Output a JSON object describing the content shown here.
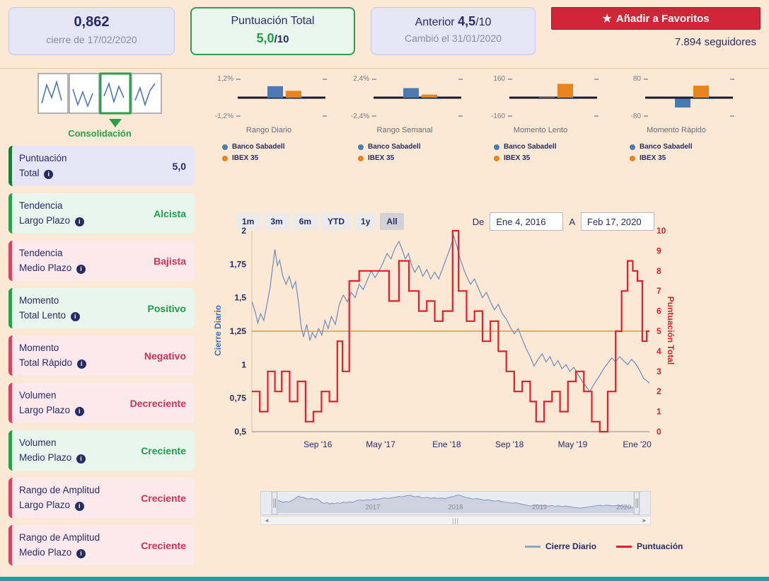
{
  "colors": {
    "navy": "#272b63",
    "green": "#27a04a",
    "red": "#cf3351",
    "sabadell": "#4d79b3",
    "ibex": "#e8831f",
    "price_line": "#6b8cbf",
    "score_line": "#e81c2c",
    "hline": "#f2a94f",
    "nav_line": "#7e94c0",
    "nav_fill": "#ccd2de",
    "button_red": "#d02537",
    "bottom_bar": "#13a3a8"
  },
  "header": {
    "price_card": {
      "value": "0,862",
      "subtitle": "cierre de 17/02/2020"
    },
    "score_card": {
      "title": "Puntuación Total",
      "value": "5,0",
      "suffix": "/10"
    },
    "previous_card": {
      "label": "Anterior",
      "value": "4,5",
      "suffix": "/10",
      "subtitle": "Cambió el 31/01/2020"
    },
    "favorites_button": {
      "icon": "star",
      "label": "Añadir a Favoritos"
    },
    "followers": "7.894 seguidores"
  },
  "pattern_widget": {
    "label": "Consolidación",
    "active_phase": 3,
    "phases": 4
  },
  "sidebar": {
    "items": [
      {
        "title": "Puntuación",
        "title2": "Total",
        "value": "5,0",
        "sentiment": "score"
      },
      {
        "title": "Tendencia",
        "title2": "Largo Plazo",
        "value": "Alcista",
        "sentiment": "positive"
      },
      {
        "title": "Tendencia",
        "title2": "Medio Plazo",
        "value": "Bajista",
        "sentiment": "negative"
      },
      {
        "title": "Momento",
        "title2": "Total Lento",
        "value": "Positivo",
        "sentiment": "positive"
      },
      {
        "title": "Momento",
        "title2": "Total Rápido",
        "value": "Negativo",
        "sentiment": "negative"
      },
      {
        "title": "Volumen",
        "title2": "Largo Plazo",
        "value": "Decreciente",
        "sentiment": "negative"
      },
      {
        "title": "Volumen",
        "title2": "Medio Plazo",
        "value": "Creciente",
        "sentiment": "positive"
      },
      {
        "title": "Rango de Amplitud",
        "title2": "Largo Plazo",
        "value": "Creciente",
        "sentiment": "negative"
      },
      {
        "title": "Rango de Amplitud",
        "title2": "Medio Plazo",
        "value": "Creciente",
        "sentiment": "negative"
      }
    ]
  },
  "controls": {
    "ranges": [
      "1m",
      "3m",
      "6m",
      "YTD",
      "1y",
      "All"
    ],
    "selected_range": "All",
    "from_label": "De",
    "from_value": "Ene 4, 2016",
    "to_label": "A",
    "to_value": "Feb 17, 2020"
  },
  "chart_data": {
    "mini_bars": [
      {
        "type": "bar",
        "title": "Rango Diario",
        "ymax_label": "1,2%",
        "ymin_label": "-1,2%",
        "ymax": 1.2,
        "series": [
          {
            "name": "Banco Sabadell",
            "value": 0.75
          },
          {
            "name": "IBEX 35",
            "value": 0.45
          }
        ]
      },
      {
        "type": "bar",
        "title": "Rango Semanal",
        "ymax_label": "2,4%",
        "ymin_label": "-2,4%",
        "ymax": 2.4,
        "series": [
          {
            "name": "Banco Sabadell",
            "value": 1.25
          },
          {
            "name": "IBEX 35",
            "value": 0.4
          }
        ]
      },
      {
        "type": "bar",
        "title": "Momento Lento",
        "ymax_label": "160",
        "ymin_label": "-160",
        "ymax": 160,
        "series": [
          {
            "name": "Banco Sabadell",
            "value": 4
          },
          {
            "name": "IBEX 35",
            "value": 120
          }
        ]
      },
      {
        "type": "bar",
        "title": "Momento Rápido",
        "ymax_label": "80",
        "ymin_label": "-80",
        "ymax": 80,
        "series": [
          {
            "name": "Banco Sabadell",
            "value": -38
          },
          {
            "name": "IBEX 35",
            "value": 52
          }
        ]
      }
    ],
    "main": {
      "type": "line",
      "left_axis": {
        "title": "Cierre Diario",
        "min": 0.5,
        "max": 2,
        "ticks": [
          {
            "v": 2,
            "label": "2"
          },
          {
            "v": 1.75,
            "label": "1,75"
          },
          {
            "v": 1.5,
            "label": "1,5"
          },
          {
            "v": 1.25,
            "label": "1,25"
          },
          {
            "v": 1,
            "label": "1"
          },
          {
            "v": 0.75,
            "label": "0,75"
          },
          {
            "v": 0.5,
            "label": "0,5"
          }
        ]
      },
      "right_axis": {
        "title": "Puntuación Total",
        "min": 0,
        "max": 10,
        "ticks": [
          {
            "v": 10,
            "label": "10"
          },
          {
            "v": 9,
            "label": "9"
          },
          {
            "v": 8,
            "label": "8"
          },
          {
            "v": 7,
            "label": "7"
          },
          {
            "v": 6,
            "label": "6"
          },
          {
            "v": 5,
            "label": "5"
          },
          {
            "v": 4,
            "label": "4"
          },
          {
            "v": 3,
            "label": "3"
          },
          {
            "v": 2,
            "label": "2"
          },
          {
            "v": 1,
            "label": "1"
          },
          {
            "v": 0,
            "label": "0"
          }
        ]
      },
      "x_axis": {
        "start": "Ene 4, 2016",
        "end": "Feb 17, 2020",
        "ticks": [
          {
            "pos": 0.166,
            "label": "Sep '16"
          },
          {
            "pos": 0.324,
            "label": "May '17"
          },
          {
            "pos": 0.49,
            "label": "Ene '18"
          },
          {
            "pos": 0.648,
            "label": "Sep '18"
          },
          {
            "pos": 0.807,
            "label": "May '19"
          },
          {
            "pos": 0.969,
            "label": "Ene '20"
          }
        ]
      },
      "hline": 5,
      "series": [
        {
          "name": "Cierre Diario",
          "type": "line",
          "axis": "left",
          "color": "#6b8cbf",
          "points": [
            [
              0,
              1.47
            ],
            [
              0.008,
              1.4
            ],
            [
              0.015,
              1.31
            ],
            [
              0.022,
              1.38
            ],
            [
              0.03,
              1.33
            ],
            [
              0.038,
              1.45
            ],
            [
              0.046,
              1.58
            ],
            [
              0.052,
              1.72
            ],
            [
              0.058,
              1.86
            ],
            [
              0.064,
              1.74
            ],
            [
              0.07,
              1.78
            ],
            [
              0.078,
              1.66
            ],
            [
              0.086,
              1.6
            ],
            [
              0.094,
              1.66
            ],
            [
              0.102,
              1.57
            ],
            [
              0.11,
              1.62
            ],
            [
              0.118,
              1.45
            ],
            [
              0.124,
              1.28
            ],
            [
              0.13,
              1.21
            ],
            [
              0.138,
              1.3
            ],
            [
              0.146,
              1.18
            ],
            [
              0.152,
              1.24
            ],
            [
              0.16,
              1.2
            ],
            [
              0.168,
              1.27
            ],
            [
              0.176,
              1.22
            ],
            [
              0.184,
              1.33
            ],
            [
              0.192,
              1.27
            ],
            [
              0.2,
              1.36
            ],
            [
              0.21,
              1.3
            ],
            [
              0.22,
              1.45
            ],
            [
              0.23,
              1.52
            ],
            [
              0.24,
              1.47
            ],
            [
              0.25,
              1.54
            ],
            [
              0.26,
              1.5
            ],
            [
              0.27,
              1.6
            ],
            [
              0.28,
              1.56
            ],
            [
              0.29,
              1.63
            ],
            [
              0.3,
              1.7
            ],
            [
              0.31,
              1.65
            ],
            [
              0.32,
              1.7
            ],
            [
              0.33,
              1.76
            ],
            [
              0.34,
              1.83
            ],
            [
              0.35,
              1.79
            ],
            [
              0.36,
              1.87
            ],
            [
              0.37,
              1.92
            ],
            [
              0.378,
              1.86
            ],
            [
              0.386,
              1.79
            ],
            [
              0.394,
              1.83
            ],
            [
              0.402,
              1.74
            ],
            [
              0.41,
              1.69
            ],
            [
              0.42,
              1.74
            ],
            [
              0.43,
              1.66
            ],
            [
              0.44,
              1.71
            ],
            [
              0.45,
              1.64
            ],
            [
              0.46,
              1.69
            ],
            [
              0.47,
              1.64
            ],
            [
              0.48,
              1.72
            ],
            [
              0.49,
              1.8
            ],
            [
              0.5,
              1.88
            ],
            [
              0.508,
              1.96
            ],
            [
              0.516,
              1.88
            ],
            [
              0.524,
              1.79
            ],
            [
              0.532,
              1.72
            ],
            [
              0.54,
              1.66
            ],
            [
              0.55,
              1.6
            ],
            [
              0.56,
              1.64
            ],
            [
              0.57,
              1.57
            ],
            [
              0.58,
              1.5
            ],
            [
              0.59,
              1.54
            ],
            [
              0.6,
              1.47
            ],
            [
              0.61,
              1.41
            ],
            [
              0.62,
              1.45
            ],
            [
              0.63,
              1.38
            ],
            [
              0.64,
              1.34
            ],
            [
              0.65,
              1.28
            ],
            [
              0.66,
              1.23
            ],
            [
              0.67,
              1.27
            ],
            [
              0.68,
              1.19
            ],
            [
              0.69,
              1.12
            ],
            [
              0.7,
              1.06
            ],
            [
              0.71,
              0.99
            ],
            [
              0.72,
              1.04
            ],
            [
              0.73,
              1.08
            ],
            [
              0.74,
              1.02
            ],
            [
              0.75,
              1.06
            ],
            [
              0.76,
              0.99
            ],
            [
              0.77,
              1.03
            ],
            [
              0.78,
              0.97
            ],
            [
              0.79,
              1
            ],
            [
              0.8,
              0.95
            ],
            [
              0.81,
              0.98
            ],
            [
              0.82,
              0.93
            ],
            [
              0.83,
              0.88
            ],
            [
              0.84,
              0.84
            ],
            [
              0.85,
              0.8
            ],
            [
              0.858,
              0.84
            ],
            [
              0.866,
              0.88
            ],
            [
              0.875,
              0.92
            ],
            [
              0.885,
              0.97
            ],
            [
              0.895,
              1.01
            ],
            [
              0.905,
              1.05
            ],
            [
              0.915,
              1.02
            ],
            [
              0.925,
              1.06
            ],
            [
              0.935,
              1.03
            ],
            [
              0.945,
              1
            ],
            [
              0.955,
              1.04
            ],
            [
              0.965,
              1.01
            ],
            [
              0.975,
              0.96
            ],
            [
              0.985,
              0.9
            ],
            [
              1,
              0.862
            ]
          ]
        },
        {
          "name": "Puntuación",
          "type": "step",
          "axis": "right",
          "color": "#e81c2c",
          "points": [
            [
              0,
              2
            ],
            [
              0.02,
              1
            ],
            [
              0.04,
              3
            ],
            [
              0.058,
              2
            ],
            [
              0.075,
              3
            ],
            [
              0.095,
              1.5
            ],
            [
              0.115,
              2.5
            ],
            [
              0.135,
              0.5
            ],
            [
              0.155,
              1
            ],
            [
              0.175,
              2
            ],
            [
              0.195,
              1.5
            ],
            [
              0.215,
              4.5
            ],
            [
              0.228,
              3
            ],
            [
              0.245,
              7.5
            ],
            [
              0.27,
              8
            ],
            [
              0.32,
              8
            ],
            [
              0.345,
              6.5
            ],
            [
              0.37,
              8.5
            ],
            [
              0.395,
              7
            ],
            [
              0.42,
              6
            ],
            [
              0.44,
              6.5
            ],
            [
              0.46,
              5.5
            ],
            [
              0.48,
              6
            ],
            [
              0.505,
              10
            ],
            [
              0.52,
              7
            ],
            [
              0.54,
              5.5
            ],
            [
              0.56,
              6
            ],
            [
              0.58,
              4.5
            ],
            [
              0.6,
              5.5
            ],
            [
              0.62,
              4
            ],
            [
              0.64,
              3
            ],
            [
              0.66,
              2
            ],
            [
              0.68,
              2.5
            ],
            [
              0.7,
              1.5
            ],
            [
              0.715,
              0.5
            ],
            [
              0.735,
              1.5
            ],
            [
              0.755,
              2
            ],
            [
              0.775,
              1
            ],
            [
              0.795,
              2.5
            ],
            [
              0.815,
              3
            ],
            [
              0.835,
              2
            ],
            [
              0.855,
              0.5
            ],
            [
              0.875,
              0
            ],
            [
              0.895,
              2
            ],
            [
              0.915,
              5
            ],
            [
              0.93,
              7
            ],
            [
              0.945,
              8.5
            ],
            [
              0.958,
              8
            ],
            [
              0.97,
              7.5
            ],
            [
              0.982,
              4.5
            ],
            [
              0.993,
              5
            ]
          ]
        }
      ]
    },
    "navigator": {
      "years": [
        {
          "pos": 0.267,
          "label": "2017"
        },
        {
          "pos": 0.5,
          "label": "2018"
        },
        {
          "pos": 0.736,
          "label": "2019"
        },
        {
          "pos": 0.973,
          "label": "2020"
        }
      ]
    }
  },
  "chart_legend": [
    {
      "label": "Cierre Diario",
      "color": "#8fa6c4"
    },
    {
      "label": "Puntuación",
      "color": "#e01e2b"
    }
  ]
}
